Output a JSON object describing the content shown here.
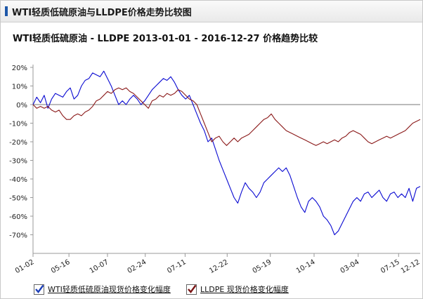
{
  "header": {
    "title": "WTI轻质低硫原油与LLDPE价格走势比较图"
  },
  "chart_data": {
    "type": "line",
    "title": "WTI轻质低硫原油 - LLDPE 2013-01-01 - 2016-12-27 价格趋势比较",
    "ylim": [
      -80,
      20
    ],
    "y_ticks": [
      "20%",
      "10%",
      "0%",
      "-10%",
      "-20%",
      "-30%",
      "-40%",
      "-50%",
      "-60%",
      "-70%"
    ],
    "y_tick_values": [
      20,
      10,
      0,
      -10,
      -20,
      -30,
      -40,
      -50,
      -60,
      -70
    ],
    "x_ticks": [
      "01-02",
      "05-16",
      "10-07",
      "02-24",
      "07-11",
      "12-22",
      "05-19",
      "10-14",
      "03-04",
      "07-15",
      "12-12"
    ],
    "xlim": [
      0,
      208
    ],
    "x_tick_positions": [
      0,
      19.3,
      40,
      60.3,
      81.7,
      104.3,
      127.5,
      151,
      174.7,
      196.4,
      218
    ],
    "grid": false,
    "zero_line": true,
    "series": [
      {
        "name": "WTI轻质低硫原油现货价格变化幅度",
        "color": "#0a0ad2",
        "points": [
          [
            0,
            0
          ],
          [
            2,
            4
          ],
          [
            4,
            1
          ],
          [
            6,
            5
          ],
          [
            8,
            -2
          ],
          [
            10,
            3
          ],
          [
            12,
            6
          ],
          [
            14,
            5
          ],
          [
            16,
            4
          ],
          [
            18,
            7
          ],
          [
            20,
            9
          ],
          [
            22,
            3
          ],
          [
            24,
            5
          ],
          [
            26,
            10
          ],
          [
            28,
            13
          ],
          [
            30,
            14
          ],
          [
            32,
            17
          ],
          [
            34,
            16
          ],
          [
            36,
            15
          ],
          [
            38,
            18
          ],
          [
            40,
            14
          ],
          [
            42,
            10
          ],
          [
            44,
            5
          ],
          [
            46,
            0
          ],
          [
            48,
            2
          ],
          [
            50,
            0
          ],
          [
            52,
            3
          ],
          [
            54,
            5
          ],
          [
            56,
            3
          ],
          [
            58,
            0
          ],
          [
            60,
            2
          ],
          [
            62,
            5
          ],
          [
            64,
            8
          ],
          [
            66,
            10
          ],
          [
            68,
            12
          ],
          [
            70,
            14
          ],
          [
            72,
            13
          ],
          [
            74,
            15
          ],
          [
            76,
            12
          ],
          [
            78,
            8
          ],
          [
            80,
            5
          ],
          [
            82,
            3
          ],
          [
            84,
            5
          ],
          [
            86,
            0
          ],
          [
            88,
            -5
          ],
          [
            90,
            -10
          ],
          [
            92,
            -14
          ],
          [
            94,
            -20
          ],
          [
            96,
            -18
          ],
          [
            98,
            -24
          ],
          [
            100,
            -30
          ],
          [
            102,
            -35
          ],
          [
            104,
            -40
          ],
          [
            106,
            -45
          ],
          [
            108,
            -50
          ],
          [
            110,
            -53
          ],
          [
            112,
            -47
          ],
          [
            114,
            -42
          ],
          [
            116,
            -45
          ],
          [
            118,
            -47
          ],
          [
            120,
            -50
          ],
          [
            122,
            -47
          ],
          [
            124,
            -42
          ],
          [
            126,
            -40
          ],
          [
            128,
            -38
          ],
          [
            130,
            -36
          ],
          [
            132,
            -34
          ],
          [
            134,
            -36
          ],
          [
            136,
            -34
          ],
          [
            138,
            -38
          ],
          [
            140,
            -44
          ],
          [
            142,
            -50
          ],
          [
            144,
            -55
          ],
          [
            146,
            -58
          ],
          [
            148,
            -52
          ],
          [
            150,
            -50
          ],
          [
            152,
            -52
          ],
          [
            154,
            -55
          ],
          [
            156,
            -60
          ],
          [
            158,
            -62
          ],
          [
            160,
            -65
          ],
          [
            162,
            -70
          ],
          [
            164,
            -68
          ],
          [
            166,
            -64
          ],
          [
            168,
            -60
          ],
          [
            170,
            -56
          ],
          [
            172,
            -52
          ],
          [
            174,
            -50
          ],
          [
            176,
            -52
          ],
          [
            178,
            -48
          ],
          [
            180,
            -47
          ],
          [
            182,
            -50
          ],
          [
            184,
            -48
          ],
          [
            186,
            -46
          ],
          [
            188,
            -50
          ],
          [
            190,
            -52
          ],
          [
            192,
            -48
          ],
          [
            194,
            -47
          ],
          [
            196,
            -50
          ],
          [
            198,
            -48
          ],
          [
            200,
            -50
          ],
          [
            202,
            -45
          ],
          [
            204,
            -52
          ],
          [
            206,
            -45
          ],
          [
            208,
            -44
          ]
        ]
      },
      {
        "name": "LLDPE 现货价格变化幅度",
        "color": "#8b1a1a",
        "points": [
          [
            0,
            0
          ],
          [
            2,
            -2
          ],
          [
            4,
            -1
          ],
          [
            6,
            -2
          ],
          [
            8,
            -1
          ],
          [
            10,
            -3
          ],
          [
            12,
            -4
          ],
          [
            14,
            -3
          ],
          [
            16,
            -6
          ],
          [
            18,
            -8
          ],
          [
            20,
            -8
          ],
          [
            22,
            -6
          ],
          [
            24,
            -5
          ],
          [
            26,
            -6
          ],
          [
            28,
            -4
          ],
          [
            30,
            -3
          ],
          [
            32,
            -1
          ],
          [
            34,
            2
          ],
          [
            36,
            3
          ],
          [
            38,
            5
          ],
          [
            40,
            7
          ],
          [
            42,
            6
          ],
          [
            44,
            8
          ],
          [
            46,
            9
          ],
          [
            48,
            8
          ],
          [
            50,
            9
          ],
          [
            52,
            7
          ],
          [
            54,
            6
          ],
          [
            56,
            4
          ],
          [
            58,
            2
          ],
          [
            60,
            0
          ],
          [
            62,
            -2
          ],
          [
            64,
            2
          ],
          [
            66,
            3
          ],
          [
            68,
            5
          ],
          [
            70,
            4
          ],
          [
            72,
            6
          ],
          [
            74,
            5
          ],
          [
            76,
            6
          ],
          [
            78,
            8
          ],
          [
            80,
            7
          ],
          [
            82,
            5
          ],
          [
            84,
            3
          ],
          [
            86,
            2
          ],
          [
            88,
            0
          ],
          [
            90,
            -5
          ],
          [
            92,
            -10
          ],
          [
            94,
            -15
          ],
          [
            96,
            -20
          ],
          [
            98,
            -18
          ],
          [
            100,
            -17
          ],
          [
            102,
            -20
          ],
          [
            104,
            -22
          ],
          [
            106,
            -20
          ],
          [
            108,
            -18
          ],
          [
            110,
            -20
          ],
          [
            112,
            -18
          ],
          [
            114,
            -17
          ],
          [
            116,
            -16
          ],
          [
            118,
            -14
          ],
          [
            120,
            -12
          ],
          [
            122,
            -10
          ],
          [
            124,
            -8
          ],
          [
            126,
            -7
          ],
          [
            128,
            -5
          ],
          [
            130,
            -8
          ],
          [
            132,
            -10
          ],
          [
            134,
            -12
          ],
          [
            136,
            -14
          ],
          [
            138,
            -15
          ],
          [
            140,
            -16
          ],
          [
            142,
            -17
          ],
          [
            144,
            -18
          ],
          [
            146,
            -19
          ],
          [
            148,
            -20
          ],
          [
            150,
            -21
          ],
          [
            152,
            -22
          ],
          [
            154,
            -21
          ],
          [
            156,
            -20
          ],
          [
            158,
            -21
          ],
          [
            160,
            -20
          ],
          [
            162,
            -19
          ],
          [
            164,
            -20
          ],
          [
            166,
            -18
          ],
          [
            168,
            -17
          ],
          [
            170,
            -15
          ],
          [
            172,
            -14
          ],
          [
            174,
            -15
          ],
          [
            176,
            -16
          ],
          [
            178,
            -18
          ],
          [
            180,
            -20
          ],
          [
            182,
            -21
          ],
          [
            184,
            -20
          ],
          [
            186,
            -19
          ],
          [
            188,
            -18
          ],
          [
            190,
            -17
          ],
          [
            192,
            -18
          ],
          [
            194,
            -17
          ],
          [
            196,
            -16
          ],
          [
            198,
            -15
          ],
          [
            200,
            -14
          ],
          [
            202,
            -12
          ],
          [
            204,
            -10
          ],
          [
            206,
            -9
          ],
          [
            208,
            -8
          ]
        ]
      }
    ]
  },
  "legend": [
    {
      "label": "WTI轻质低硫原油现货价格变化幅度",
      "checked": true,
      "color": "#0a0ad2"
    },
    {
      "label": "LLDPE 现货价格变化幅度",
      "checked": true,
      "color": "#8b1a1a"
    }
  ]
}
